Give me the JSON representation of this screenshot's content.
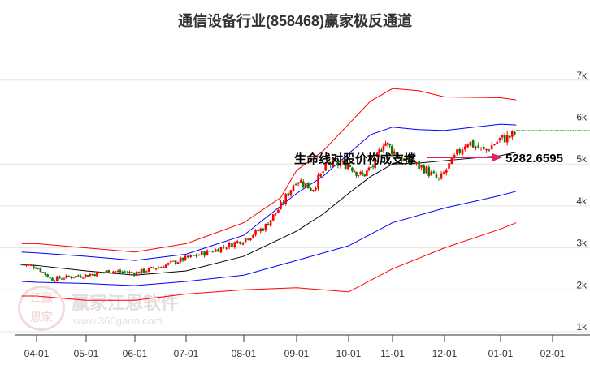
{
  "chart_data": {
    "type": "line",
    "title": "通信设备行业(858468)赢家极反通道",
    "x_ticks": [
      "04-01",
      "05-01",
      "06-01",
      "07-01",
      "08-01",
      "09-01",
      "10-01",
      "11-01",
      "12-01",
      "01-01",
      "02-01"
    ],
    "y_ticks": [
      "1k",
      "2k",
      "3k",
      "4k",
      "5k",
      "6k",
      "7k"
    ],
    "ylim": [
      1000,
      7000
    ],
    "x_months": [
      4,
      5,
      6,
      7,
      8,
      9,
      10,
      11,
      12,
      13,
      14
    ],
    "price_close": [
      [
        3.7,
        2600
      ],
      [
        4.0,
        2550
      ],
      [
        4.3,
        2250
      ],
      [
        4.6,
        2300
      ],
      [
        5.0,
        2350
      ],
      [
        5.5,
        2450
      ],
      [
        6.0,
        2400
      ],
      [
        6.5,
        2550
      ],
      [
        7.0,
        2750
      ],
      [
        7.5,
        2950
      ],
      [
        8.0,
        3200
      ],
      [
        8.4,
        3500
      ],
      [
        8.7,
        4000
      ],
      [
        9.0,
        4650
      ],
      [
        9.3,
        4400
      ],
      [
        9.6,
        5000
      ],
      [
        10.0,
        5000
      ],
      [
        10.3,
        4700
      ],
      [
        10.6,
        5000
      ],
      [
        10.8,
        5550
      ],
      [
        11.2,
        5100
      ],
      [
        11.6,
        4900
      ],
      [
        11.9,
        4600
      ],
      [
        12.1,
        5000
      ],
      [
        12.4,
        5550
      ],
      [
        12.7,
        5300
      ],
      [
        13.0,
        5600
      ],
      [
        13.2,
        5650
      ],
      [
        13.3,
        5750
      ]
    ],
    "series": [
      {
        "name": "upper-outer",
        "color": "#ff0000",
        "values": [
          [
            3.7,
            3100
          ],
          [
            4.0,
            3100
          ],
          [
            5.0,
            3000
          ],
          [
            6.0,
            2900
          ],
          [
            7.0,
            3100
          ],
          [
            8.0,
            3600
          ],
          [
            8.7,
            4200
          ],
          [
            9.0,
            4850
          ],
          [
            9.5,
            5300
          ],
          [
            10.0,
            5950
          ],
          [
            10.5,
            6500
          ],
          [
            11.0,
            6800
          ],
          [
            11.5,
            6750
          ],
          [
            12.0,
            6600
          ],
          [
            13.0,
            6580
          ],
          [
            13.3,
            6530
          ]
        ]
      },
      {
        "name": "upper-inner",
        "color": "#0000ff",
        "values": [
          [
            3.7,
            2900
          ],
          [
            4.0,
            2880
          ],
          [
            5.0,
            2800
          ],
          [
            6.0,
            2700
          ],
          [
            7.0,
            2850
          ],
          [
            8.0,
            3300
          ],
          [
            9.0,
            4300
          ],
          [
            9.5,
            4700
          ],
          [
            10.0,
            5250
          ],
          [
            10.5,
            5700
          ],
          [
            11.0,
            5880
          ],
          [
            11.5,
            5820
          ],
          [
            12.0,
            5800
          ],
          [
            13.0,
            5950
          ],
          [
            13.3,
            5930
          ]
        ]
      },
      {
        "name": "middle",
        "color": "#000000",
        "values": [
          [
            3.7,
            2600
          ],
          [
            4.0,
            2580
          ],
          [
            5.0,
            2450
          ],
          [
            6.0,
            2350
          ],
          [
            7.0,
            2450
          ],
          [
            8.0,
            2800
          ],
          [
            9.0,
            3400
          ],
          [
            9.5,
            3800
          ],
          [
            10.0,
            4300
          ],
          [
            10.5,
            4700
          ],
          [
            11.0,
            5000
          ],
          [
            11.5,
            5020
          ],
          [
            12.0,
            5080
          ],
          [
            13.0,
            5200
          ],
          [
            13.3,
            5282.6595
          ]
        ]
      },
      {
        "name": "lower-inner",
        "color": "#0000ff",
        "values": [
          [
            3.7,
            2200
          ],
          [
            4.0,
            2180
          ],
          [
            5.0,
            2150
          ],
          [
            6.0,
            2100
          ],
          [
            7.0,
            2200
          ],
          [
            8.0,
            2350
          ],
          [
            9.0,
            2700
          ],
          [
            10.0,
            3050
          ],
          [
            11.0,
            3600
          ],
          [
            12.0,
            3950
          ],
          [
            13.0,
            4250
          ],
          [
            13.3,
            4350
          ]
        ]
      },
      {
        "name": "lower-outer",
        "color": "#ff0000",
        "values": [
          [
            3.7,
            1850
          ],
          [
            4.0,
            1850
          ],
          [
            5.0,
            1750
          ],
          [
            6.0,
            1750
          ],
          [
            7.0,
            1900
          ],
          [
            8.0,
            2000
          ],
          [
            9.0,
            2050
          ],
          [
            10.0,
            1950
          ],
          [
            11.0,
            2500
          ],
          [
            12.0,
            3000
          ],
          [
            13.0,
            3450
          ],
          [
            13.3,
            3600
          ]
        ]
      }
    ],
    "reference_line": {
      "value": 5800,
      "color": "#00a000"
    },
    "annotation": {
      "text": "生命线对股价构成支撑",
      "value": "5282.6595"
    }
  },
  "watermark": {
    "name": "赢家江恩软件",
    "url": "www.360gann.com",
    "seal": "江赢恩家"
  }
}
